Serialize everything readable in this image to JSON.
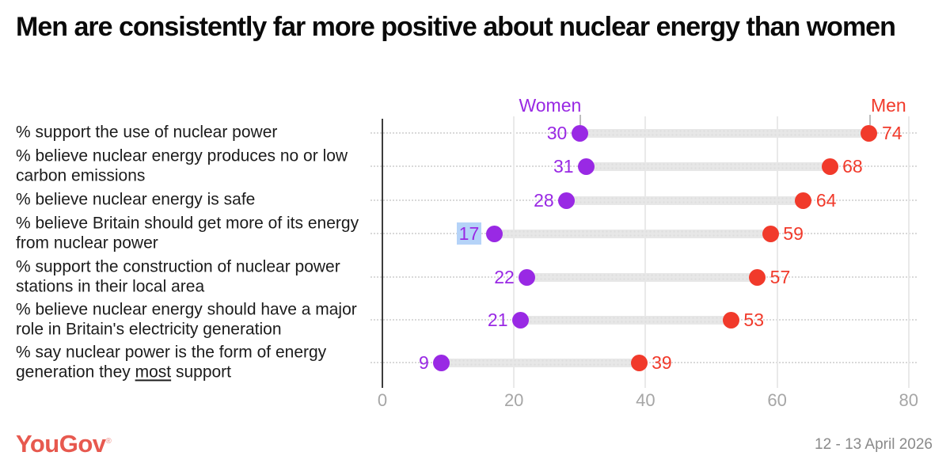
{
  "header": {
    "title": "Men are consistently far more positive about nuclear energy than women"
  },
  "legend": {
    "women_label": "Women",
    "men_label": "Men"
  },
  "colors": {
    "women": "#9929E4",
    "men": "#F13A2B",
    "bar": "#E7E7E7",
    "selection_highlight": "#B5D3F8",
    "logo": "#E7594F",
    "axis": "#3D3D3D",
    "gridline": "#E9E9E9",
    "dotted_line": "#D9D9D9",
    "tick_text": "#A6A6A6",
    "date_text": "#8A8A8A",
    "title_text": "#0A0A0A",
    "label_text": "#1C1C1C"
  },
  "chart_data": {
    "type": "dumbbell",
    "title": "Men are consistently far more positive about nuclear energy than women",
    "categories": [
      "% support the use of nuclear power",
      "% believe nuclear energy produces no or low carbon emissions",
      "% believe nuclear energy is safe",
      "% believe Britain should get more of its energy from nuclear power",
      "% support the construction of nuclear power stations in their local area",
      "% believe nuclear energy should have a major role in Britain's electricity generation",
      "% say nuclear power is the form of energy generation they most support"
    ],
    "series": [
      {
        "name": "Women",
        "color": "#9929E4",
        "values": [
          30,
          31,
          28,
          17,
          22,
          21,
          9
        ]
      },
      {
        "name": "Men",
        "color": "#F13A2B",
        "values": [
          74,
          68,
          64,
          59,
          57,
          53,
          39
        ]
      }
    ],
    "xlim": [
      0,
      84
    ],
    "xticks": [
      0,
      20,
      40,
      60,
      80
    ],
    "grid": "light vertical gridlines at ticks; dotted horizontal guide per row",
    "legend_position": "top, pointing at first-row dots",
    "rows": [
      {
        "label_lines": [
          "% support the use of nuclear power"
        ],
        "women": 30,
        "men": 74
      },
      {
        "label_lines": [
          "% believe nuclear energy produces no or low",
          "carbon emissions"
        ],
        "women": 31,
        "men": 68
      },
      {
        "label_lines": [
          "% believe nuclear energy is safe"
        ],
        "women": 28,
        "men": 64
      },
      {
        "label_lines": [
          "% believe Britain should get more of its energy",
          "from nuclear power"
        ],
        "women": 17,
        "men": 59,
        "women_value_selected": true
      },
      {
        "label_lines": [
          "% support the construction of nuclear power",
          "stations in their local area"
        ],
        "women": 22,
        "men": 57
      },
      {
        "label_lines": [
          "% believe nuclear energy should have a major",
          "role in Britain's electricity generation"
        ],
        "women": 21,
        "men": 53
      },
      {
        "label_lines": [
          "% say nuclear power is the form of energy",
          "generation they most support"
        ],
        "women": 9,
        "men": 39,
        "underline_word": "most"
      }
    ]
  },
  "footer": {
    "logo_text": "YouGov",
    "logo_mark": "®",
    "date": "12 - 13 April 2026"
  }
}
